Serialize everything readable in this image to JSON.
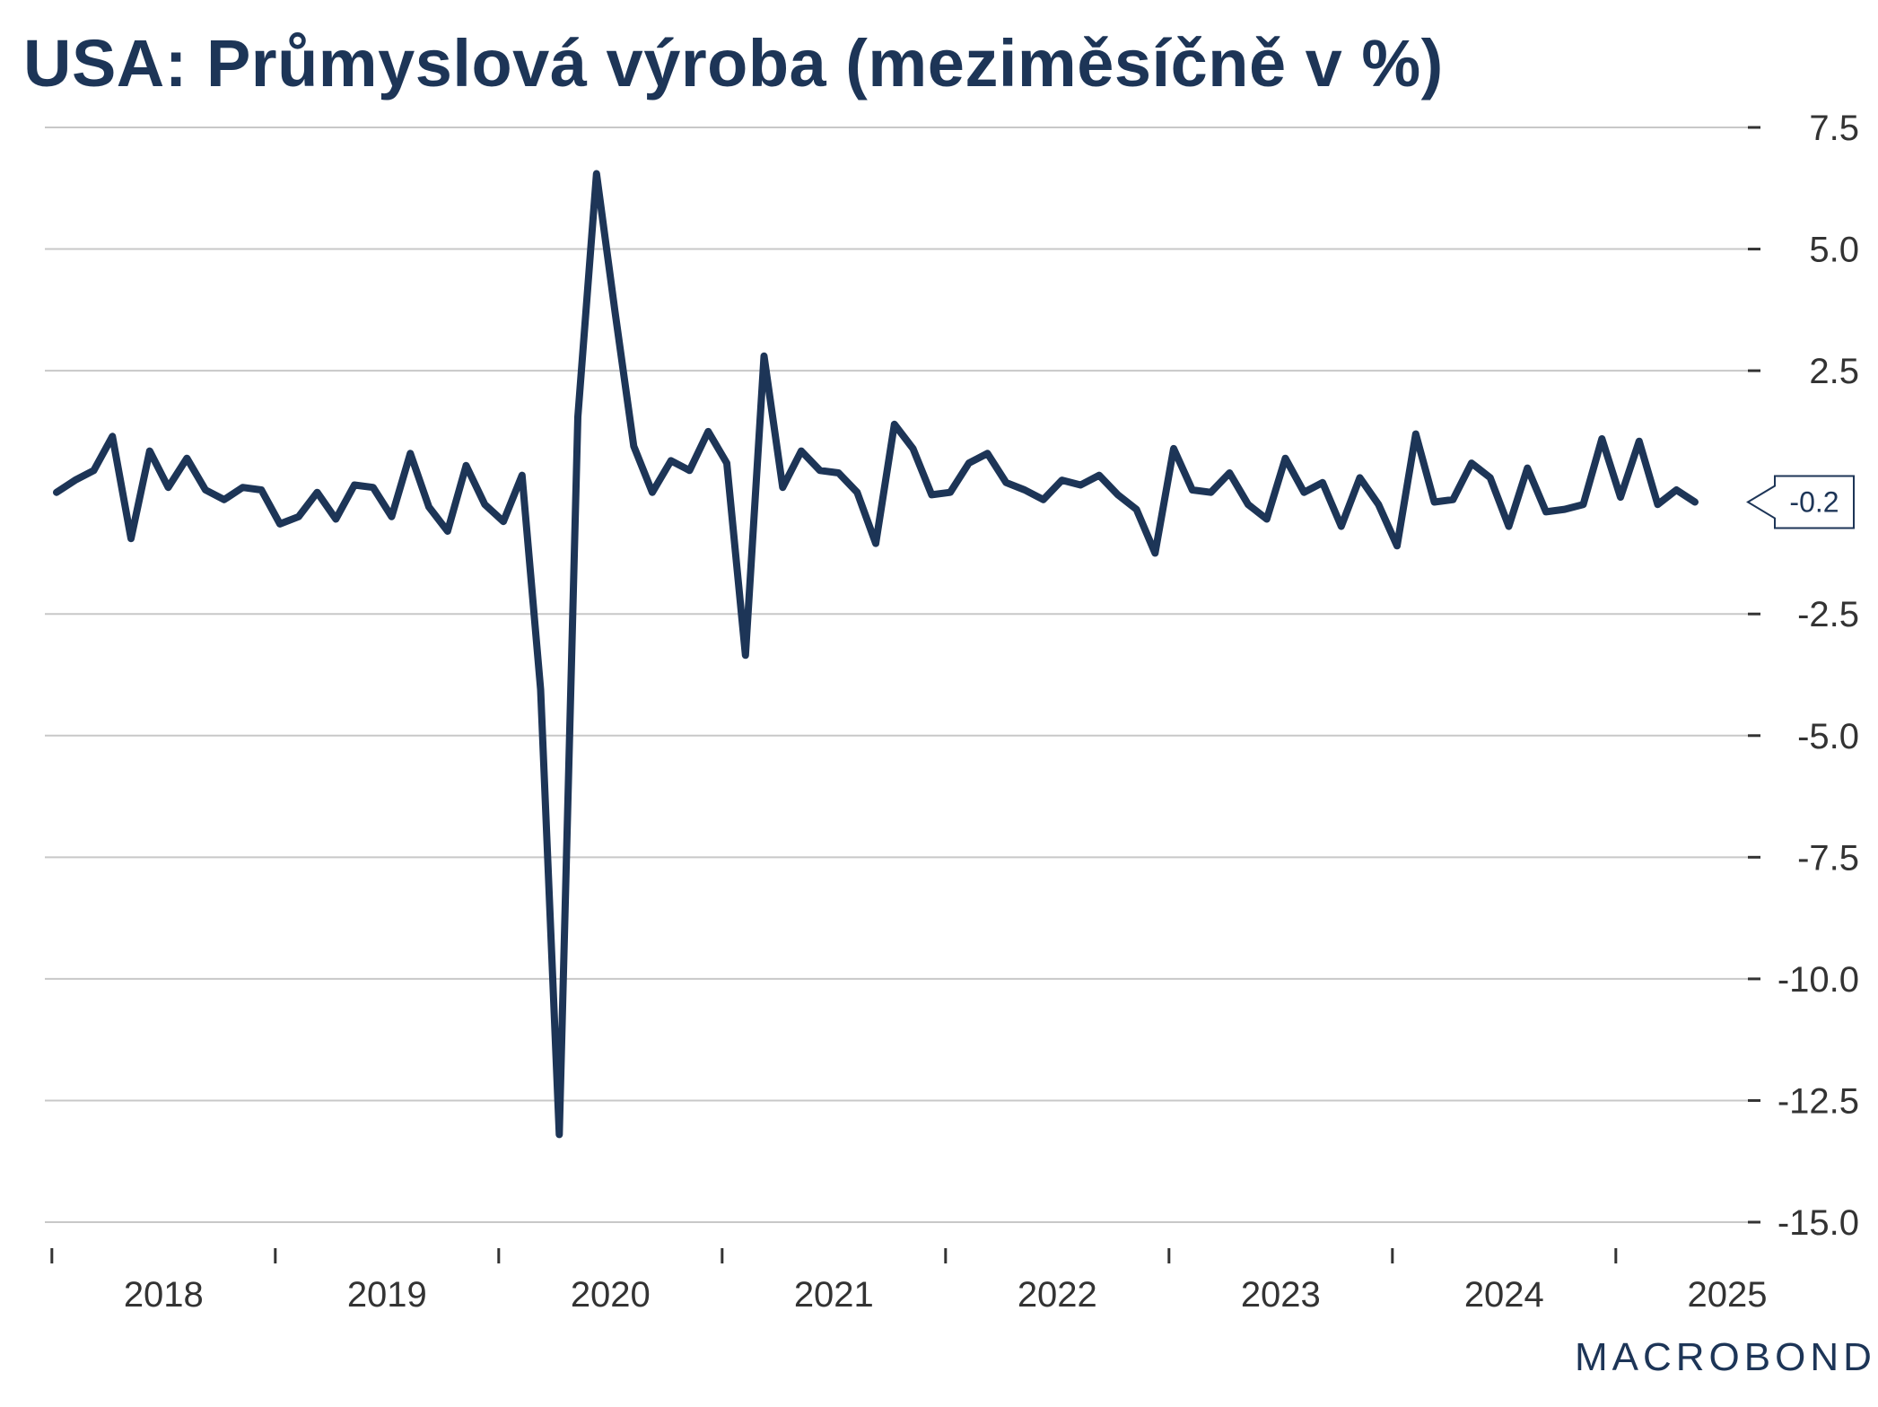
{
  "chart_data": {
    "type": "line",
    "title": "USA: Průmyslová výroba (meziměsíčně v %)",
    "xlabel": "",
    "ylabel": "",
    "ylim": [
      -15,
      7.5
    ],
    "yticks": [
      "7.5",
      "5.0",
      "2.5",
      "-0.2",
      "-2.5",
      "-5.0",
      "-7.5",
      "-10.0",
      "-12.5",
      "-15.0"
    ],
    "x_tick_labels": [
      "2018",
      "2019",
      "2020",
      "2021",
      "2022",
      "2023",
      "2024",
      "2025"
    ],
    "x_start": "2017-12",
    "grid": true,
    "last_value_label": "-0.2",
    "series": [
      {
        "color": "#1d3557",
        "values": [
          0.0,
          0.25,
          0.45,
          1.15,
          -0.95,
          0.85,
          0.1,
          0.7,
          0.05,
          -0.15,
          0.1,
          0.05,
          -0.65,
          -0.5,
          0.0,
          -0.55,
          0.15,
          0.1,
          -0.5,
          0.8,
          -0.3,
          -0.8,
          0.55,
          -0.25,
          -0.6,
          0.35,
          -4.05,
          -13.2,
          1.55,
          6.55,
          3.7,
          0.95,
          0.0,
          0.65,
          0.45,
          1.25,
          0.6,
          -3.35,
          2.8,
          0.1,
          0.85,
          0.45,
          0.4,
          0.0,
          -1.05,
          1.4,
          0.9,
          -0.05,
          0.0,
          0.6,
          0.8,
          0.2,
          0.05,
          -0.15,
          0.25,
          0.15,
          0.35,
          -0.05,
          -0.35,
          -1.25,
          0.9,
          0.05,
          0.0,
          0.4,
          -0.25,
          -0.55,
          0.7,
          0.0,
          0.2,
          -0.7,
          0.3,
          -0.25,
          -1.1,
          1.2,
          -0.2,
          -0.15,
          0.6,
          0.3,
          -0.7,
          0.5,
          -0.4,
          -0.35,
          -0.25,
          1.1,
          -0.1,
          1.05,
          -0.25,
          0.05,
          -0.2
        ]
      }
    ]
  },
  "logo_text": "MACROBOND"
}
